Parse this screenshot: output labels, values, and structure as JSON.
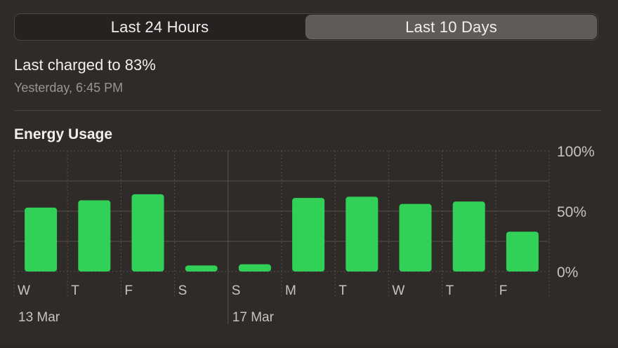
{
  "tabs": [
    {
      "label": "Last 24 Hours",
      "selected": false
    },
    {
      "label": "Last 10 Days",
      "selected": true
    }
  ],
  "charge": {
    "status": "Last charged to 83%",
    "time": "Yesterday, 6:45 PM"
  },
  "energy": {
    "title": "Energy Usage"
  },
  "colors": {
    "bar": "#31d158",
    "background": "#2f2b29",
    "grid": "#57524e"
  },
  "chart_data": {
    "type": "bar",
    "title": "Energy Usage",
    "categories": [
      "W",
      "T",
      "F",
      "S",
      "S",
      "M",
      "T",
      "W",
      "T",
      "F"
    ],
    "date_labels": [
      {
        "label": "13 Mar",
        "category_index": 0
      },
      {
        "label": "17 Mar",
        "category_index": 4
      }
    ],
    "values": [
      53,
      59,
      64,
      5,
      6,
      61,
      62,
      56,
      58,
      33
    ],
    "ylim": [
      0,
      100
    ],
    "y_ticks": [
      "0%",
      "50%",
      "100%"
    ],
    "y_tick_values": [
      0,
      50,
      100
    ],
    "grid": true,
    "series": [
      {
        "values": [
          53,
          59,
          64,
          5,
          6,
          61,
          62,
          56,
          58,
          33
        ]
      }
    ]
  }
}
